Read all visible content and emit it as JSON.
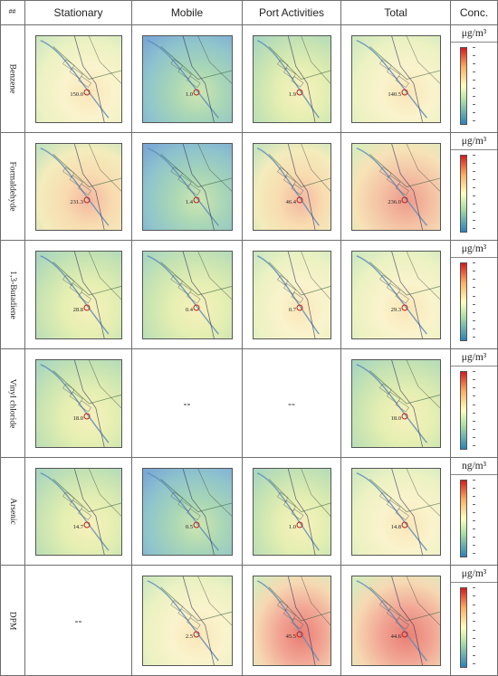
{
  "header": {
    "corner": "##",
    "columns": [
      "Stationary",
      "Mobile",
      "Port Activities",
      "Total",
      "Conc."
    ]
  },
  "rows": [
    {
      "pollutant": "Benzene",
      "unit": "μg/m³",
      "maps": [
        {
          "present": true,
          "label": "150.0",
          "scheme": "light"
        },
        {
          "present": true,
          "label": "1.0",
          "scheme": "blue"
        },
        {
          "present": true,
          "label": "1.9",
          "scheme": "mid"
        },
        {
          "present": true,
          "label": "140.5",
          "scheme": "light"
        }
      ]
    },
    {
      "pollutant": "Formaldehyde",
      "unit": "μg/m³",
      "maps": [
        {
          "present": true,
          "label": "231.3",
          "scheme": "warm"
        },
        {
          "present": true,
          "label": "1.4",
          "scheme": "blue"
        },
        {
          "present": true,
          "label": "46.4",
          "scheme": "warm"
        },
        {
          "present": true,
          "label": "236.0",
          "scheme": "hot"
        }
      ]
    },
    {
      "pollutant": "1,3-Butadiene",
      "unit": "μg/m³",
      "maps": [
        {
          "present": true,
          "label": "28.8",
          "scheme": "mid"
        },
        {
          "present": true,
          "label": "0.4",
          "scheme": "mid"
        },
        {
          "present": true,
          "label": "0.7",
          "scheme": "light"
        },
        {
          "present": true,
          "label": "29.3",
          "scheme": "light"
        }
      ]
    },
    {
      "pollutant": "Vinyl chloride",
      "unit": "μg/m³",
      "maps": [
        {
          "present": true,
          "label": "18.0",
          "scheme": "mid"
        },
        {
          "present": false,
          "text": "--"
        },
        {
          "present": false,
          "text": "--"
        },
        {
          "present": true,
          "label": "18.0",
          "scheme": "mid"
        }
      ]
    },
    {
      "pollutant": "Arsenic",
      "unit": "ng/m³",
      "maps": [
        {
          "present": true,
          "label": "14.7",
          "scheme": "mid"
        },
        {
          "present": true,
          "label": "0.5",
          "scheme": "blue"
        },
        {
          "present": true,
          "label": "1.0",
          "scheme": "mid"
        },
        {
          "present": true,
          "label": "14.8",
          "scheme": "light"
        }
      ]
    },
    {
      "pollutant": "DPM",
      "unit": "μg/m³",
      "maps": [
        {
          "present": false,
          "text": "--"
        },
        {
          "present": true,
          "label": "2.5",
          "scheme": "light"
        },
        {
          "present": true,
          "label": "45.5",
          "scheme": "red"
        },
        {
          "present": true,
          "label": "44.6",
          "scheme": "red"
        }
      ]
    }
  ],
  "colors": {
    "border": "#6e6e6e",
    "scale_top": "#d7191c",
    "scale_mid": "#ffffbf",
    "scale_bottom": "#2b83ba"
  }
}
